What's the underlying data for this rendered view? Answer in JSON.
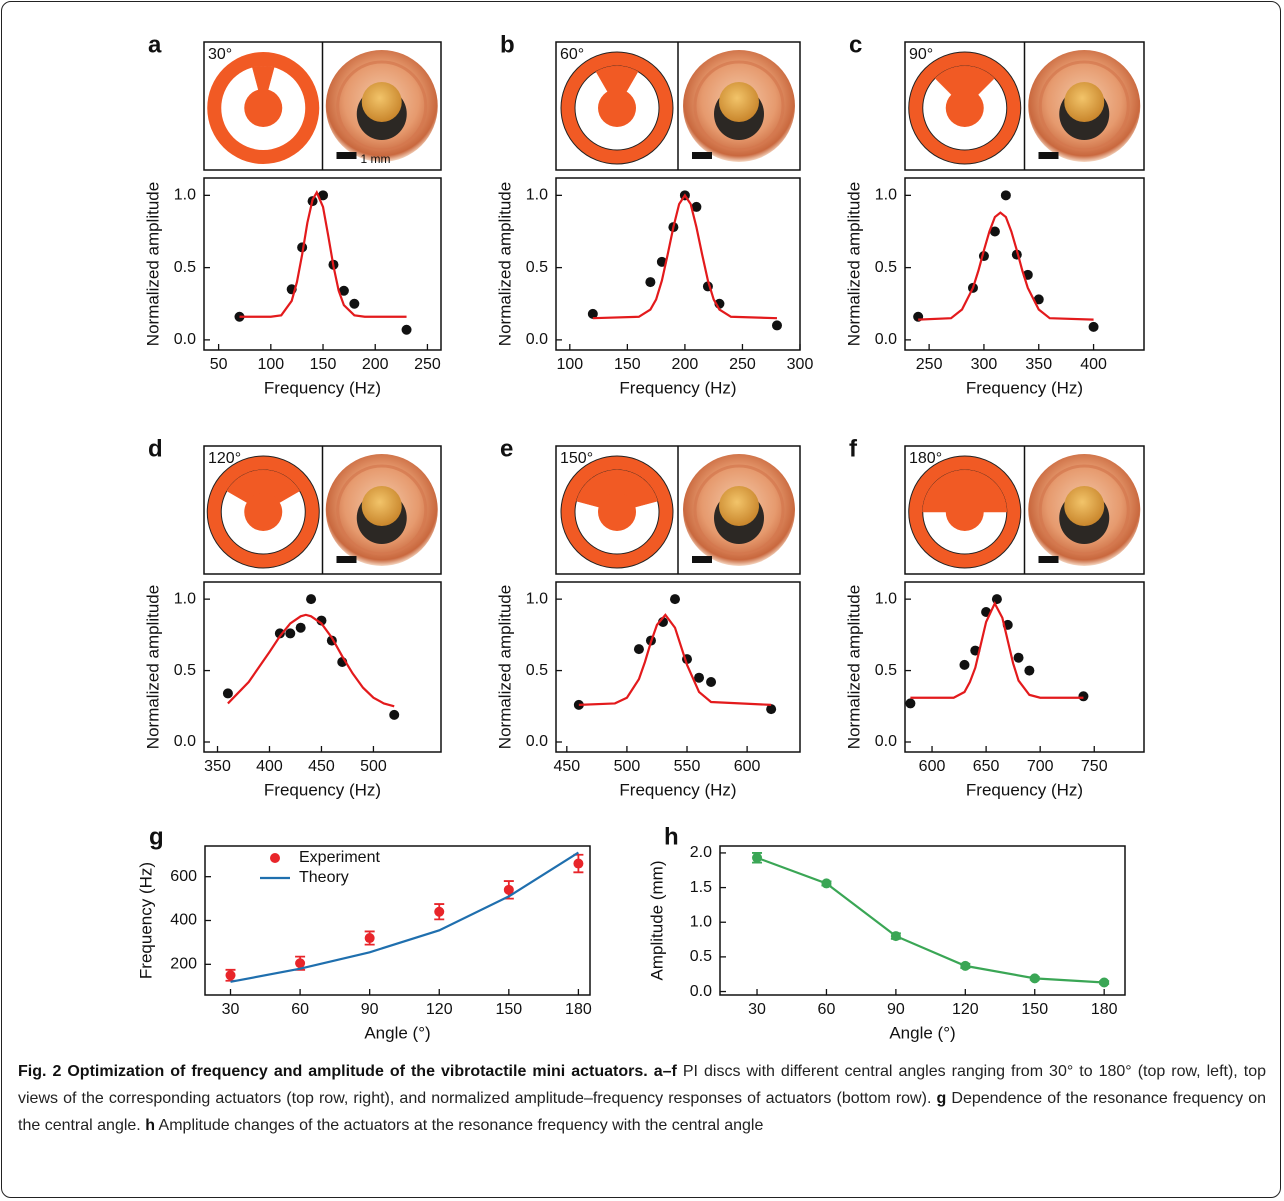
{
  "chart_data": [
    {
      "type": "scatter",
      "panel": "a",
      "inset_label": "30°",
      "scale_label": "1 mm",
      "xlabel": "Frequency (Hz)",
      "ylabel": "Normalized amplitude",
      "xlim": [
        36,
        263
      ],
      "xticks": [
        50,
        100,
        150,
        200,
        250
      ],
      "ylim": [
        -0.07,
        1.12
      ],
      "yticks": [
        {
          "value": 0,
          "label": "0.0"
        },
        {
          "value": 0.5,
          "label": "0.5"
        },
        {
          "value": 1,
          "label": "1.0"
        }
      ],
      "series": [
        {
          "style": "markers",
          "color": "#111111",
          "x": [
            70,
            120,
            130,
            140,
            150,
            160,
            170,
            180,
            230
          ],
          "values": [
            0.16,
            0.35,
            0.64,
            0.96,
            1.0,
            0.52,
            0.34,
            0.25,
            0.07
          ]
        },
        {
          "style": "line",
          "color": "#e31a1c",
          "x": [
            70,
            100,
            110,
            120,
            125,
            130,
            135,
            140,
            144,
            150,
            155,
            160,
            165,
            170,
            180,
            190,
            230
          ],
          "values": [
            0.16,
            0.16,
            0.17,
            0.27,
            0.4,
            0.59,
            0.81,
            0.97,
            1.02,
            0.92,
            0.72,
            0.51,
            0.34,
            0.24,
            0.17,
            0.16,
            0.16
          ]
        }
      ]
    },
    {
      "type": "scatter",
      "panel": "b",
      "inset_label": "60°",
      "xlabel": "Frequency (Hz)",
      "ylabel": "Normalized amplitude",
      "xlim": [
        88,
        300
      ],
      "xticks": [
        100,
        150,
        200,
        250,
        300
      ],
      "ylim": [
        -0.07,
        1.12
      ],
      "yticks": [
        {
          "value": 0,
          "label": "0.0"
        },
        {
          "value": 0.5,
          "label": "0.5"
        },
        {
          "value": 1,
          "label": "1.0"
        }
      ],
      "series": [
        {
          "style": "markers",
          "color": "#111111",
          "x": [
            120,
            170,
            180,
            190,
            200,
            210,
            220,
            230,
            280
          ],
          "values": [
            0.18,
            0.4,
            0.54,
            0.78,
            1.0,
            0.92,
            0.37,
            0.25,
            0.1
          ]
        },
        {
          "style": "line",
          "color": "#e31a1c",
          "x": [
            120,
            160,
            170,
            175,
            180,
            185,
            190,
            195,
            200,
            205,
            210,
            215,
            220,
            225,
            230,
            240,
            280
          ],
          "values": [
            0.15,
            0.16,
            0.21,
            0.28,
            0.41,
            0.59,
            0.78,
            0.94,
            1.0,
            0.94,
            0.78,
            0.59,
            0.41,
            0.28,
            0.21,
            0.16,
            0.15
          ]
        }
      ]
    },
    {
      "type": "scatter",
      "panel": "c",
      "inset_label": "90°",
      "xlabel": "Frequency (Hz)",
      "ylabel": "Normalized amplitude",
      "xlim": [
        228,
        446
      ],
      "xticks": [
        250,
        300,
        350,
        400
      ],
      "ylim": [
        -0.07,
        1.12
      ],
      "yticks": [
        {
          "value": 0,
          "label": "0.0"
        },
        {
          "value": 0.5,
          "label": "0.5"
        },
        {
          "value": 1,
          "label": "1.0"
        }
      ],
      "series": [
        {
          "style": "markers",
          "color": "#111111",
          "x": [
            240,
            290,
            300,
            310,
            320,
            330,
            340,
            350,
            400
          ],
          "values": [
            0.16,
            0.36,
            0.58,
            0.75,
            1.0,
            0.59,
            0.45,
            0.28,
            0.09
          ]
        },
        {
          "style": "line",
          "color": "#e31a1c",
          "x": [
            240,
            270,
            280,
            290,
            295,
            300,
            305,
            310,
            315,
            320,
            325,
            330,
            335,
            340,
            350,
            360,
            400
          ],
          "values": [
            0.14,
            0.15,
            0.21,
            0.36,
            0.48,
            0.62,
            0.75,
            0.85,
            0.88,
            0.85,
            0.75,
            0.62,
            0.48,
            0.36,
            0.21,
            0.15,
            0.14
          ]
        }
      ]
    },
    {
      "type": "scatter",
      "panel": "d",
      "inset_label": "120°",
      "xlabel": "Frequency (Hz)",
      "ylabel": "Normalized amplitude",
      "xlim": [
        337,
        565
      ],
      "xticks": [
        350,
        400,
        450,
        500
      ],
      "ylim": [
        -0.07,
        1.12
      ],
      "yticks": [
        {
          "value": 0,
          "label": "0.0"
        },
        {
          "value": 0.5,
          "label": "0.5"
        },
        {
          "value": 1,
          "label": "1.0"
        }
      ],
      "series": [
        {
          "style": "markers",
          "color": "#111111",
          "x": [
            360,
            410,
            420,
            430,
            440,
            450,
            460,
            470,
            520
          ],
          "values": [
            0.34,
            0.76,
            0.76,
            0.8,
            1.0,
            0.85,
            0.71,
            0.56,
            0.19
          ]
        },
        {
          "style": "line",
          "color": "#e31a1c",
          "x": [
            360,
            380,
            400,
            410,
            420,
            430,
            435,
            440,
            450,
            460,
            470,
            480,
            490,
            500,
            510,
            520
          ],
          "values": [
            0.27,
            0.42,
            0.63,
            0.74,
            0.83,
            0.88,
            0.89,
            0.88,
            0.83,
            0.73,
            0.6,
            0.48,
            0.38,
            0.31,
            0.27,
            0.25
          ]
        }
      ]
    },
    {
      "type": "scatter",
      "panel": "e",
      "inset_label": "150°",
      "xlabel": "Frequency (Hz)",
      "ylabel": "Normalized amplitude",
      "xlim": [
        441,
        644
      ],
      "xticks": [
        450,
        500,
        550,
        600
      ],
      "ylim": [
        -0.07,
        1.12
      ],
      "yticks": [
        {
          "value": 0,
          "label": "0.0"
        },
        {
          "value": 0.5,
          "label": "0.5"
        },
        {
          "value": 1,
          "label": "1.0"
        }
      ],
      "series": [
        {
          "style": "markers",
          "color": "#111111",
          "x": [
            460,
            510,
            520,
            530,
            540,
            550,
            560,
            570,
            620
          ],
          "values": [
            0.26,
            0.65,
            0.71,
            0.84,
            1.0,
            0.58,
            0.45,
            0.42,
            0.23
          ]
        },
        {
          "style": "line",
          "color": "#e31a1c",
          "x": [
            460,
            490,
            500,
            510,
            515,
            520,
            525,
            532,
            540,
            545,
            550,
            560,
            570,
            620
          ],
          "values": [
            0.26,
            0.27,
            0.31,
            0.44,
            0.56,
            0.7,
            0.82,
            0.89,
            0.8,
            0.67,
            0.54,
            0.35,
            0.28,
            0.26
          ]
        }
      ]
    },
    {
      "type": "scatter",
      "panel": "f",
      "inset_label": "180°",
      "xlabel": "Frequency (Hz)",
      "ylabel": "Normalized amplitude",
      "xlim": [
        575,
        796
      ],
      "xticks": [
        600,
        650,
        700,
        750
      ],
      "ylim": [
        -0.07,
        1.12
      ],
      "yticks": [
        {
          "value": 0,
          "label": "0.0"
        },
        {
          "value": 0.5,
          "label": "0.5"
        },
        {
          "value": 1,
          "label": "1.0"
        }
      ],
      "series": [
        {
          "style": "markers",
          "color": "#111111",
          "x": [
            580,
            630,
            640,
            650,
            660,
            670,
            680,
            690,
            740
          ],
          "values": [
            0.27,
            0.54,
            0.64,
            0.91,
            1.0,
            0.82,
            0.59,
            0.5,
            0.32
          ]
        },
        {
          "style": "line",
          "color": "#e31a1c",
          "x": [
            580,
            620,
            630,
            635,
            640,
            645,
            650,
            658,
            665,
            670,
            675,
            680,
            690,
            700,
            740
          ],
          "values": [
            0.31,
            0.31,
            0.35,
            0.42,
            0.52,
            0.68,
            0.84,
            0.97,
            0.87,
            0.71,
            0.55,
            0.43,
            0.33,
            0.31,
            0.31
          ]
        }
      ]
    },
    {
      "type": "line",
      "panel": "g",
      "xlabel": "Angle (°)",
      "ylabel": "Frequency (Hz)",
      "legend": "upper left",
      "x": [
        30,
        60,
        90,
        120,
        150,
        180
      ],
      "xlim": [
        19,
        185
      ],
      "xticks": [
        30,
        60,
        90,
        120,
        150,
        180
      ],
      "ylim": [
        60,
        740
      ],
      "yticks": [
        200,
        400,
        600
      ],
      "series": [
        {
          "name": "Experiment",
          "style": "markers",
          "color": "#e8252a",
          "values": [
            150,
            205,
            320,
            440,
            540,
            660
          ],
          "errors": [
            25,
            30,
            30,
            35,
            40,
            40
          ]
        },
        {
          "name": "Theory",
          "style": "line",
          "color": "#1f6fae",
          "values": [
            120,
            180,
            255,
            355,
            510,
            710
          ]
        }
      ]
    },
    {
      "type": "line",
      "panel": "h",
      "xlabel": "Angle (°)",
      "ylabel": "Amplitude (mm)",
      "x": [
        30,
        60,
        90,
        120,
        150,
        180
      ],
      "xlim": [
        14,
        189
      ],
      "xticks": [
        30,
        60,
        90,
        120,
        150,
        180
      ],
      "ylim": [
        -0.05,
        2.1
      ],
      "yticks": [
        {
          "value": 0,
          "label": "0.0"
        },
        {
          "value": 0.5,
          "label": "0.5"
        },
        {
          "value": 1,
          "label": "1.0"
        },
        {
          "value": 1.5,
          "label": "1.5"
        },
        {
          "value": 2,
          "label": "2.0"
        }
      ],
      "series": [
        {
          "style": "line+markers",
          "color": "#3aa655",
          "values": [
            1.93,
            1.56,
            0.8,
            0.37,
            0.19,
            0.13
          ],
          "errors": [
            0.07,
            0.03,
            0.04,
            0.03,
            0.02,
            0.02
          ]
        }
      ]
    }
  ],
  "caption": {
    "title": "Fig. 2 Optimization of frequency and amplitude of the vibrotactile mini actuators.",
    "items": [
      {
        "label": "a–f",
        "text": "PI discs with different central angles ranging from 30° to 180° (top row, left), top views of the corresponding actuators (top row, right), and normalized amplitude–frequency responses of actuators (bottom row)."
      },
      {
        "label": "g",
        "text": "Dependence of the resonance frequency on the central angle."
      },
      {
        "label": "h",
        "text": "Amplitude changes of the actuators at the resonance frequency with the central angle"
      }
    ]
  }
}
